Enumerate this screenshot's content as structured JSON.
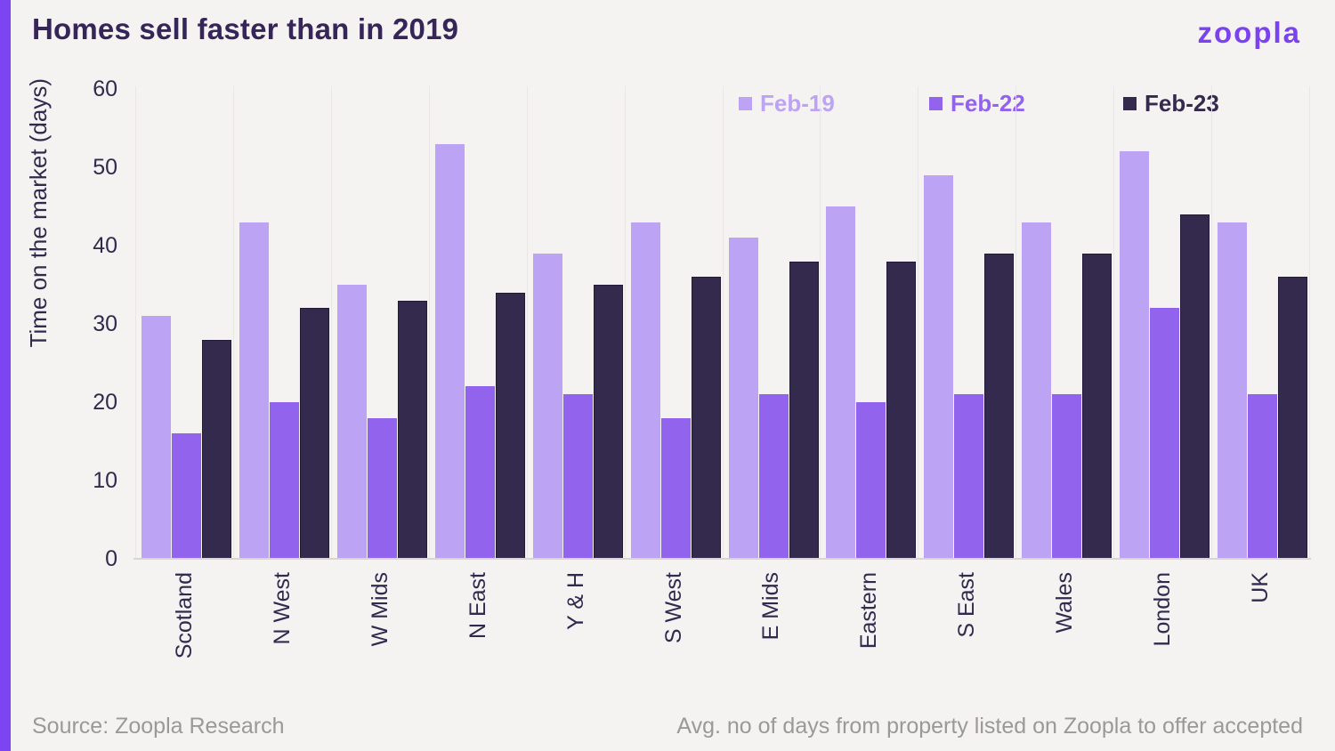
{
  "header": {
    "title": "Homes sell faster than in 2019",
    "logo": "zoopla"
  },
  "footer": {
    "source": "Source: Zoopla Research",
    "note": "Avg. no of days from property listed on Zoopla to offer accepted"
  },
  "colors": {
    "background": "#f5f3f1",
    "accent_stripe": "#7c45f1",
    "logo": "#7b42f0",
    "title_text": "#362559",
    "axis_text": "#302b4e",
    "muted_text": "#9b9997",
    "gridline": "#e9e6e3",
    "axis_line": "#d8d5d2"
  },
  "chart_data": {
    "type": "bar",
    "title": "Homes sell faster than in 2019",
    "xlabel": "",
    "ylabel": "Time on the market (days)",
    "ylim": [
      0,
      60
    ],
    "yticks": [
      0,
      10,
      20,
      30,
      40,
      50,
      60
    ],
    "grid": "vertical-category-separators",
    "legend_position": "top",
    "categories": [
      "Scotland",
      "N West",
      "W Mids",
      "N East",
      "Y & H",
      "S West",
      "E Mids",
      "Eastern",
      "S East",
      "Wales",
      "London",
      "UK"
    ],
    "series": [
      {
        "name": "Feb-19",
        "color": "#bda3f3",
        "values": [
          31,
          43,
          35,
          53,
          39,
          43,
          41,
          45,
          49,
          43,
          52,
          43
        ]
      },
      {
        "name": "Feb-22",
        "color": "#9263ec",
        "values": [
          16,
          20,
          18,
          22,
          21,
          18,
          21,
          20,
          21,
          21,
          32,
          21
        ]
      },
      {
        "name": "Feb-23",
        "color": "#332a4e",
        "values": [
          28,
          32,
          33,
          34,
          35,
          36,
          38,
          38,
          39,
          39,
          44,
          36
        ]
      }
    ]
  }
}
